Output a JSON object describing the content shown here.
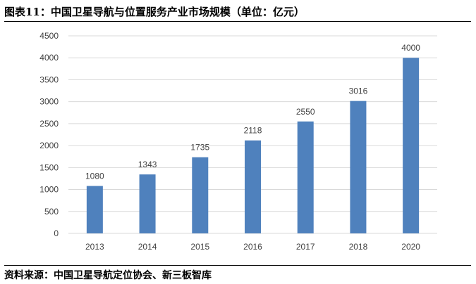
{
  "header": {
    "title": "图表11：中国卫星导航与位置服务产业市场规模（单位：亿元）"
  },
  "footer": {
    "source": "资料来源：中国卫星导航定位协会、新三板智库"
  },
  "chart_data": {
    "type": "bar",
    "title": "",
    "xlabel": "",
    "ylabel": "",
    "categories": [
      "2013",
      "2014",
      "2015",
      "2016",
      "2017",
      "2018",
      "2020"
    ],
    "values": [
      1080,
      1343,
      1735,
      2118,
      2550,
      3016,
      4000
    ],
    "ylim": [
      0,
      4500
    ],
    "yticks": [
      "0",
      "500",
      "1000",
      "1500",
      "2000",
      "2500",
      "3000",
      "3500",
      "4000",
      "4500"
    ],
    "grid": true,
    "legend": "none",
    "data_labels": true,
    "bar_color": "#4f81bd",
    "grid_color": "#d9d9d9"
  }
}
